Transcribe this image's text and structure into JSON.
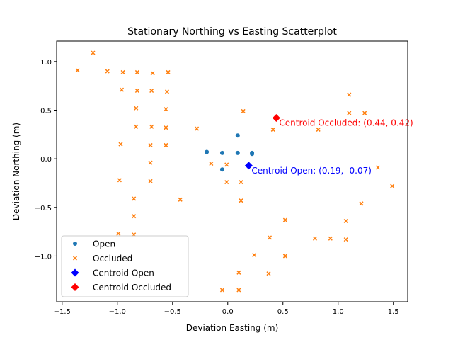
{
  "chart_data": {
    "type": "scatter",
    "title": "Stationary Northing vs Easting Scatterplot",
    "xlabel": "Deviation Easting (m)",
    "ylabel": "Deviation Northing (m)",
    "xlim": [
      -1.55,
      1.63
    ],
    "ylim": [
      -1.47,
      1.21
    ],
    "x_ticks": [
      -1.5,
      -1.0,
      -0.5,
      0.0,
      0.5,
      1.0,
      1.5
    ],
    "x_tick_labels": [
      "−1.5",
      "−1.0",
      "−0.5",
      "0.0",
      "0.5",
      "1.0",
      "1.5"
    ],
    "y_ticks": [
      1.0,
      0.5,
      0.0,
      -0.5,
      -1.0
    ],
    "y_tick_labels": [
      "1.0",
      "0.5",
      "0.0",
      "−0.5",
      "−1.0"
    ],
    "grid": false,
    "legend_position": "lower-left",
    "series": [
      {
        "name": "Open",
        "marker": "circle",
        "color": "#1f77b4",
        "points": [
          [
            -0.19,
            0.07
          ],
          [
            -0.05,
            0.06
          ],
          [
            0.09,
            0.06
          ],
          [
            0.22,
            0.05
          ],
          [
            0.09,
            0.24
          ],
          [
            -0.05,
            -0.11
          ],
          [
            0.22,
            0.06
          ]
        ]
      },
      {
        "name": "Occluded",
        "marker": "x",
        "color": "#ff7f0e",
        "points": [
          [
            -1.36,
            0.91
          ],
          [
            -1.22,
            1.09
          ],
          [
            -1.09,
            0.9
          ],
          [
            -0.95,
            0.89
          ],
          [
            -0.82,
            0.89
          ],
          [
            -0.68,
            0.88
          ],
          [
            -0.54,
            0.89
          ],
          [
            -0.96,
            0.71
          ],
          [
            -0.82,
            0.7
          ],
          [
            -0.69,
            0.7
          ],
          [
            -0.55,
            0.69
          ],
          [
            -0.83,
            0.52
          ],
          [
            -0.56,
            0.51
          ],
          [
            -0.83,
            0.33
          ],
          [
            -0.69,
            0.33
          ],
          [
            -0.56,
            0.32
          ],
          [
            -0.28,
            0.31
          ],
          [
            -0.97,
            0.15
          ],
          [
            -0.7,
            0.14
          ],
          [
            -0.56,
            0.14
          ],
          [
            -0.7,
            -0.04
          ],
          [
            -0.15,
            -0.05
          ],
          [
            -0.01,
            -0.06
          ],
          [
            -0.7,
            -0.23
          ],
          [
            -0.98,
            -0.22
          ],
          [
            -0.01,
            -0.24
          ],
          [
            0.12,
            -0.24
          ],
          [
            -0.85,
            -0.41
          ],
          [
            -0.43,
            -0.42
          ],
          [
            0.12,
            -0.43
          ],
          [
            -0.85,
            -0.59
          ],
          [
            0.52,
            -0.63
          ],
          [
            -0.99,
            -0.77
          ],
          [
            -0.85,
            -0.78
          ],
          [
            0.38,
            -0.81
          ],
          [
            0.79,
            -0.82
          ],
          [
            0.93,
            -0.82
          ],
          [
            1.07,
            -0.83
          ],
          [
            0.24,
            -0.99
          ],
          [
            0.52,
            -1.0
          ],
          [
            0.1,
            -1.17
          ],
          [
            0.37,
            -1.18
          ],
          [
            -0.05,
            -1.35
          ],
          [
            0.1,
            -1.35
          ],
          [
            0.14,
            0.49
          ],
          [
            0.41,
            0.3
          ],
          [
            0.82,
            0.3
          ],
          [
            1.1,
            0.66
          ],
          [
            1.1,
            0.47
          ],
          [
            1.24,
            0.47
          ],
          [
            1.36,
            -0.09
          ],
          [
            1.49,
            -0.28
          ],
          [
            1.21,
            -0.46
          ],
          [
            1.07,
            -0.64
          ]
        ]
      },
      {
        "name": "Centroid Open",
        "marker": "diamond",
        "color": "#0000ff",
        "points": [
          [
            0.19,
            -0.07
          ]
        ]
      },
      {
        "name": "Centroid Occluded",
        "marker": "diamond",
        "color": "#ff0000",
        "points": [
          [
            0.44,
            0.42
          ]
        ]
      }
    ],
    "annotations": [
      {
        "text": "Centroid Occluded: (0.44, 0.42)",
        "x": 0.44,
        "y": 0.42,
        "color": "#ff0000"
      },
      {
        "text": "Centroid Open: (0.19, -0.07)",
        "x": 0.19,
        "y": -0.07,
        "color": "#0000ff"
      }
    ]
  }
}
